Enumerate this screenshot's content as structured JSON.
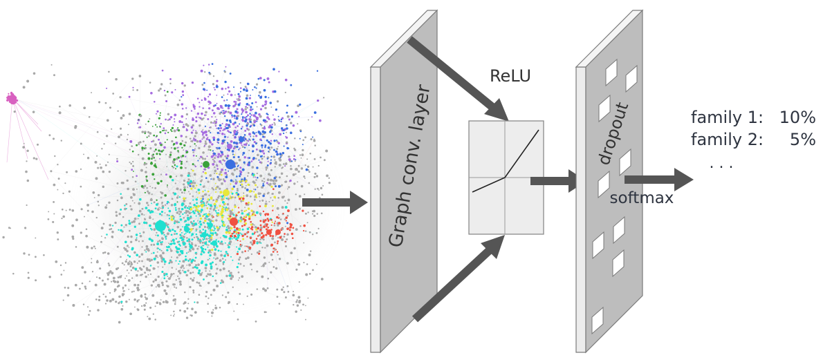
{
  "diagram": {
    "layer_label": "Graph conv. layer",
    "activation_label": "ReLU",
    "dropout_label": "dropout",
    "softmax_label": "softmax",
    "outputs": [
      {
        "name": "family 1:",
        "value": "10%"
      },
      {
        "name": "family 2:",
        "value": "5%"
      }
    ],
    "outputs_ellipsis": ". . ."
  },
  "colors": {
    "arrow": "#555555",
    "panel_face": "#bdbdbd",
    "panel_side": "#ececec",
    "panel_edge": "#7a7a7a",
    "relu_box": "#ededed",
    "graph_gray": "#a8a8a8",
    "cluster_purple": "#a56ce0",
    "cluster_blue": "#3a6fe0",
    "cluster_cyan": "#1fe0d0",
    "cluster_green": "#3aa23a",
    "cluster_yellow": "#e8e83a",
    "cluster_red": "#f05040",
    "cluster_pink": "#d860c0"
  }
}
